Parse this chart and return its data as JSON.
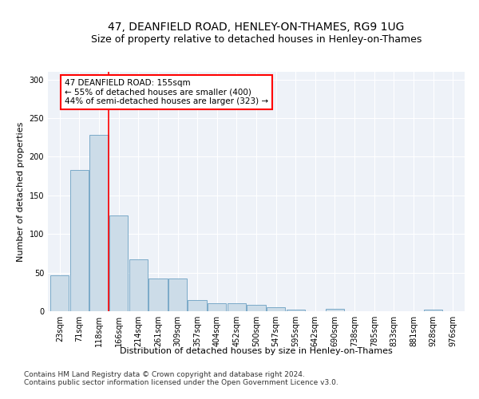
{
  "title": "47, DEANFIELD ROAD, HENLEY-ON-THAMES, RG9 1UG",
  "subtitle": "Size of property relative to detached houses in Henley-on-Thames",
  "xlabel": "Distribution of detached houses by size in Henley-on-Thames",
  "ylabel": "Number of detached properties",
  "categories": [
    "23sqm",
    "71sqm",
    "118sqm",
    "166sqm",
    "214sqm",
    "261sqm",
    "309sqm",
    "357sqm",
    "404sqm",
    "452sqm",
    "500sqm",
    "547sqm",
    "595sqm",
    "642sqm",
    "690sqm",
    "738sqm",
    "785sqm",
    "833sqm",
    "881sqm",
    "928sqm",
    "976sqm"
  ],
  "values": [
    47,
    183,
    228,
    124,
    67,
    42,
    42,
    14,
    10,
    10,
    8,
    5,
    2,
    0,
    3,
    0,
    0,
    0,
    0,
    2,
    0
  ],
  "bar_color": "#ccdce8",
  "bar_edge_color": "#7aaac8",
  "annotation_line_color": "red",
  "annotation_text_lines": [
    "47 DEANFIELD ROAD: 155sqm",
    "← 55% of detached houses are smaller (400)",
    "44% of semi-detached houses are larger (323) →"
  ],
  "footnote1": "Contains HM Land Registry data © Crown copyright and database right 2024.",
  "footnote2": "Contains public sector information licensed under the Open Government Licence v3.0.",
  "ylim": [
    0,
    310
  ],
  "yticks": [
    0,
    50,
    100,
    150,
    200,
    250,
    300
  ],
  "title_fontsize": 10,
  "xlabel_fontsize": 8,
  "ylabel_fontsize": 8,
  "tick_fontsize": 7,
  "annotation_fontsize": 7.5,
  "footnote_fontsize": 6.5,
  "background_color": "#eef2f8"
}
